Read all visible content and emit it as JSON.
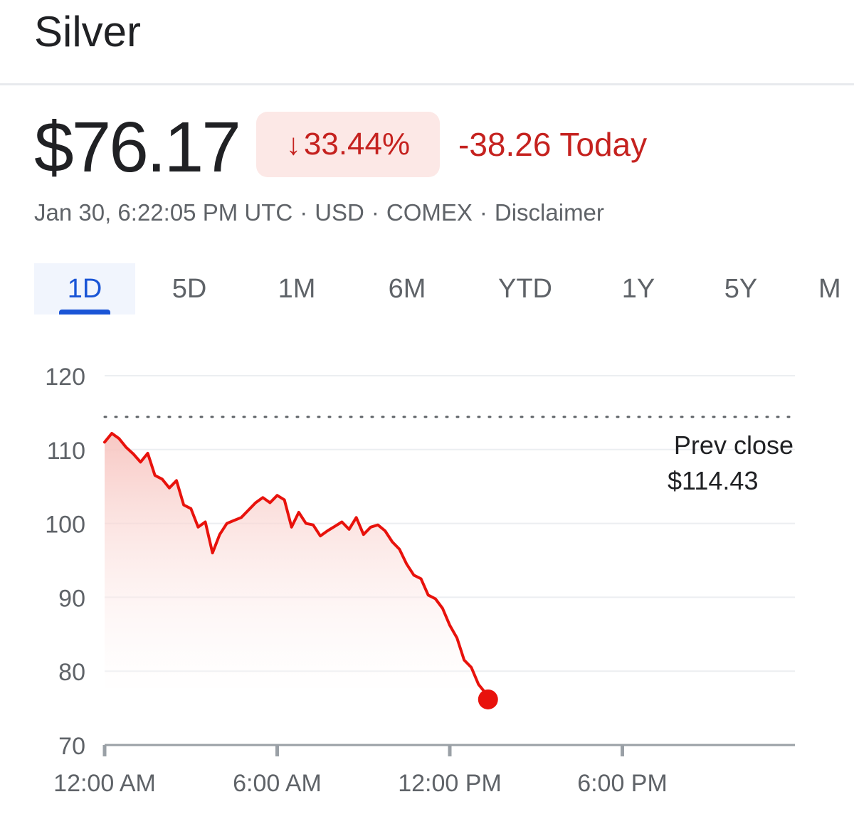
{
  "header": {
    "title": "Silver"
  },
  "quote": {
    "price": "$76.17",
    "change_percent": "33.44%",
    "change_today": "-38.26 Today",
    "timestamp": "Jan 30, 6:22:05 PM UTC",
    "currency": "USD",
    "exchange": "COMEX",
    "disclaimer": "Disclaimer",
    "down_color": "#c5221f"
  },
  "tabs": [
    {
      "label": "1D",
      "active": true
    },
    {
      "label": "5D",
      "active": false
    },
    {
      "label": "1M",
      "active": false
    },
    {
      "label": "6M",
      "active": false
    },
    {
      "label": "YTD",
      "active": false
    },
    {
      "label": "1Y",
      "active": false
    },
    {
      "label": "5Y",
      "active": false
    },
    {
      "label": "M",
      "active": false
    }
  ],
  "chart_data": {
    "type": "area",
    "ylim": [
      70,
      120
    ],
    "yticks": [
      120,
      110,
      100,
      90,
      80,
      70
    ],
    "xlim": [
      0,
      24
    ],
    "xticks": [
      {
        "value": 0,
        "label": "12:00 AM"
      },
      {
        "value": 6,
        "label": "6:00 AM"
      },
      {
        "value": 12,
        "label": "12:00 PM"
      },
      {
        "value": 18,
        "label": "6:00 PM"
      }
    ],
    "grid": true,
    "prev_close": {
      "value": 114.43,
      "label": "Prev close",
      "value_label": "$114.43"
    },
    "line_color": "#e8120c",
    "series": [
      {
        "x": [
          0,
          0.25,
          0.5,
          0.75,
          1.0,
          1.25,
          1.5,
          1.75,
          2.0,
          2.25,
          2.5,
          2.75,
          3.0,
          3.25,
          3.5,
          3.75,
          4.0,
          4.25,
          4.5,
          4.75,
          5.0,
          5.25,
          5.5,
          5.75,
          6.0,
          6.25,
          6.5,
          6.75,
          7.0,
          7.25,
          7.5,
          7.75,
          8.0,
          8.25,
          8.5,
          8.75,
          9.0,
          9.25,
          9.5,
          9.75,
          10.0,
          10.25,
          10.5,
          10.75,
          11.0,
          11.25,
          11.5,
          11.75,
          12.0,
          12.25,
          12.5,
          12.75,
          13.0,
          13.25,
          13.33
        ],
        "y": [
          111.0,
          112.2,
          111.5,
          110.3,
          109.4,
          108.3,
          109.5,
          106.5,
          106.0,
          104.8,
          105.8,
          102.5,
          102.0,
          99.5,
          100.2,
          96.0,
          98.5,
          100.0,
          100.4,
          100.8,
          101.8,
          102.8,
          103.5,
          102.8,
          103.8,
          103.2,
          99.5,
          101.5,
          100.0,
          99.8,
          98.3,
          99.0,
          99.6,
          100.2,
          99.2,
          100.8,
          98.5,
          99.5,
          99.8,
          99.0,
          97.5,
          96.5,
          94.5,
          93.0,
          92.5,
          90.3,
          89.8,
          88.5,
          86.2,
          84.5,
          81.5,
          80.5,
          78.2,
          77.0,
          76.17
        ]
      }
    ]
  }
}
